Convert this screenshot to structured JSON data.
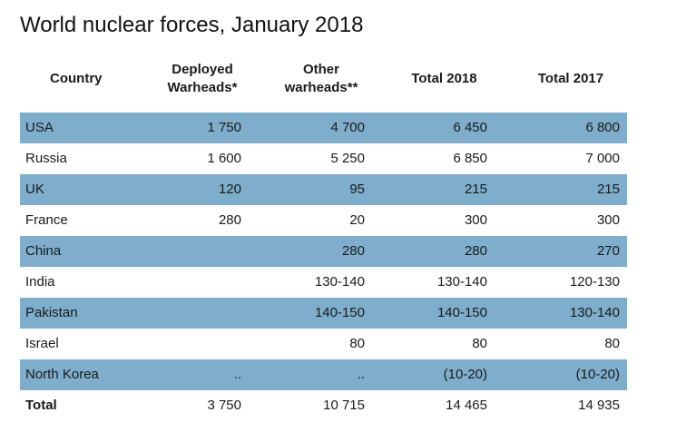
{
  "title": "World nuclear forces, January 2018",
  "headers": {
    "country": "Country",
    "deployed_l1": "Deployed",
    "deployed_l2": "Warheads*",
    "other_l1": "Other",
    "other_l2": "warheads**",
    "total2018": "Total 2018",
    "total2017": "Total 2017"
  },
  "rows": [
    {
      "country": "USA",
      "deployed": "1 750",
      "other": "4 700",
      "total2018": "6 450",
      "total2017": "6 800"
    },
    {
      "country": "Russia",
      "deployed": "1 600",
      "other": "5 250",
      "total2018": "6 850",
      "total2017": "7 000"
    },
    {
      "country": "UK",
      "deployed": "120",
      "other": "95",
      "total2018": "215",
      "total2017": "215"
    },
    {
      "country": "France",
      "deployed": "280",
      "other": "20",
      "total2018": "300",
      "total2017": "300"
    },
    {
      "country": "China",
      "deployed": "",
      "other": "280",
      "total2018": "280",
      "total2017": "270"
    },
    {
      "country": "India",
      "deployed": "",
      "other": "130-140",
      "total2018": "130-140",
      "total2017": "120-130"
    },
    {
      "country": "Pakistan",
      "deployed": "",
      "other": "140-150",
      "total2018": "140-150",
      "total2017": "130-140"
    },
    {
      "country": "Israel",
      "deployed": "",
      "other": "80",
      "total2018": "80",
      "total2017": "80"
    },
    {
      "country": "North Korea",
      "deployed": "..",
      "other": "..",
      "total2018": "(10-20)",
      "total2017": "(10-20)"
    }
  ],
  "total": {
    "country": "Total",
    "deployed": "3 750",
    "other": "10 715",
    "total2018": "14 465",
    "total2017": "14 935"
  },
  "colors": {
    "row_shade": "#7eaecb"
  }
}
